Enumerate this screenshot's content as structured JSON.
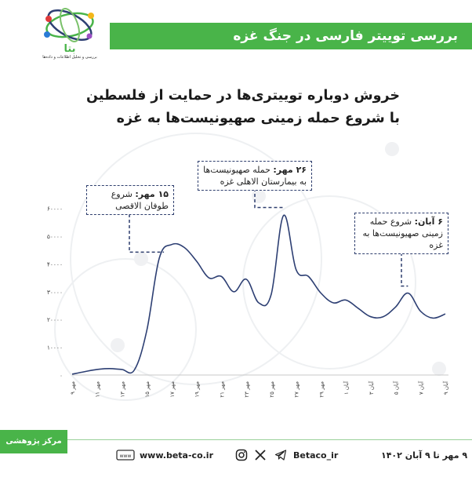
{
  "header": {
    "title": "بررسی توییتر فارسی در جنگ غزه",
    "logo_text": "بتا",
    "logo_caption": "بررسی و تحلیل اطلاعات و داده‌ها"
  },
  "colors": {
    "accent": "#49b449",
    "line": "#2d3f73",
    "note_border": "#2f3f6e"
  },
  "main_title": {
    "line1": "خروش دوباره توییتری‌ها در حمایت از فلسطین",
    "line2": "با شروع حمله زمینی صهیونیست‌ها به غزه"
  },
  "notes": [
    {
      "date": "۱۵ مهر:",
      "text": "شروع طوفان الاقصی"
    },
    {
      "date": "۲۶ مهر:",
      "text": "حمله صهیونیست‌ها به بیمارستان الاهلی غزه"
    },
    {
      "date": "۶ آبان:",
      "text": "شروع حمله زمینی صهیونیست‌ها به غزه"
    }
  ],
  "chart_data": {
    "type": "line",
    "title": "خروش دوباره توییتری‌ها در حمایت از فلسطین با شروع حمله زمینی صهیونیست‌ها به غزه",
    "xlabel": "",
    "ylabel": "",
    "ylim": [
      0,
      65000
    ],
    "yticks": [
      0,
      10000,
      20000,
      30000,
      40000,
      50000,
      60000
    ],
    "ytick_labels": [
      "۰",
      "۱۰۰۰۰",
      "۲۰۰۰۰",
      "۳۰۰۰۰",
      "۴۰۰۰۰",
      "۵۰۰۰۰",
      "۶۰۰۰۰"
    ],
    "x_tick_labels": [
      "۹ مهر",
      "۱۱ مهر",
      "۱۳ مهر",
      "۱۵ مهر",
      "۱۷ مهر",
      "۱۹ مهر",
      "۲۱ مهر",
      "۲۳ مهر",
      "۲۵ مهر",
      "۲۷ مهر",
      "۲۹ مهر",
      "۱ آبان",
      "۳ آبان",
      "۵ آبان",
      "۷ آبان",
      "۹ آبان"
    ],
    "x_tick_index": [
      0,
      2,
      4,
      6,
      8,
      10,
      12,
      14,
      16,
      18,
      20,
      22,
      24,
      26,
      28,
      30
    ],
    "grid": false,
    "series": [
      {
        "values": [
          300,
          1200,
          2000,
          2300,
          2000,
          1800,
          16000,
          42000,
          47000,
          46000,
          41000,
          35000,
          35500,
          30000,
          34500,
          26000,
          29000,
          57500,
          38000,
          35500,
          29500,
          26000,
          27000,
          24000,
          21000,
          21000,
          24500,
          29500,
          23000,
          20500,
          22000
        ]
      }
    ]
  },
  "footer": {
    "org": "مرکز پژوهشی بتا",
    "website": "www.beta-co.ir",
    "handle": "Betaco_ir",
    "date_range": "۹ مهر تا ۹ آبان ۱۴۰۲"
  }
}
